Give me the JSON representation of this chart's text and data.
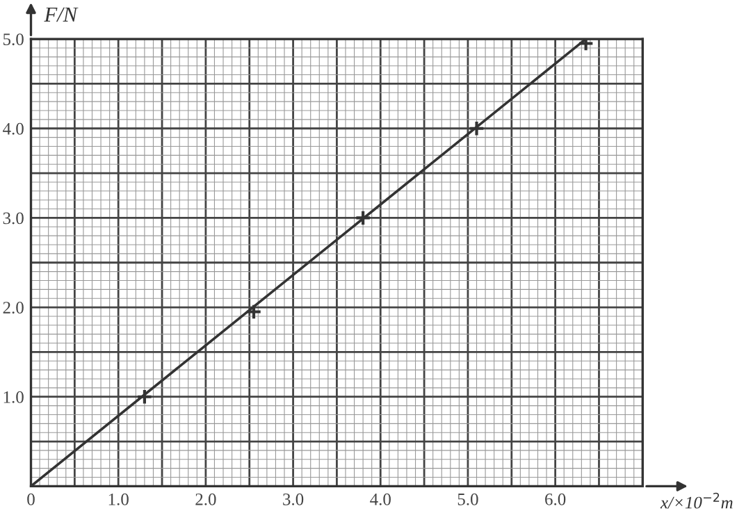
{
  "chart_data": {
    "type": "scatter",
    "xlabel": "x/×10$^{−2}$m",
    "ylabel": "F/N",
    "series": [
      {
        "color": "#333333",
        "marker": "cross",
        "x": [
          1.3,
          2.55,
          3.8,
          5.1,
          6.35
        ],
        "values": [
          1.0,
          1.95,
          3.0,
          4.0,
          4.95
        ]
      },
      {
        "type": "line",
        "color": "#333333",
        "marker": "none",
        "line_style": "solid",
        "x": [
          0,
          6.35
        ],
        "values": [
          0,
          5.0
        ]
      }
    ],
    "xlim": [
      0,
      7.0
    ],
    "ylim": [
      0,
      5.0
    ],
    "xticks": [
      {
        "value": 0,
        "label": "0"
      },
      {
        "value": 0.5,
        "label": null
      },
      {
        "value": 1.0,
        "label": "1.0"
      },
      {
        "value": 1.5,
        "label": null
      },
      {
        "value": 2.0,
        "label": "2.0"
      },
      {
        "value": 2.5,
        "label": null
      },
      {
        "value": 3.0,
        "label": "3.0"
      },
      {
        "value": 3.5,
        "label": null
      },
      {
        "value": 4.0,
        "label": "4.0"
      },
      {
        "value": 4.5,
        "label": null
      },
      {
        "value": 5.0,
        "label": "5.0"
      },
      {
        "value": 5.5,
        "label": null
      },
      {
        "value": 6.0,
        "label": "6.0"
      },
      {
        "value": 6.5,
        "label": null
      },
      {
        "value": 7.0,
        "label": null
      }
    ],
    "yticks": [
      {
        "value": 0,
        "label": null
      },
      {
        "value": 0.5,
        "label": null
      },
      {
        "value": 1.0,
        "label": "1.0"
      },
      {
        "value": 1.5,
        "label": null
      },
      {
        "value": 2.0,
        "label": "2.0"
      },
      {
        "value": 2.5,
        "label": null
      },
      {
        "value": 3.0,
        "label": "3.0"
      },
      {
        "value": 3.5,
        "label": null
      },
      {
        "value": 4.0,
        "label": "4.0"
      },
      {
        "value": 4.5,
        "label": null
      },
      {
        "value": 5.0,
        "label": "5.0"
      }
    ],
    "grid": true
  }
}
